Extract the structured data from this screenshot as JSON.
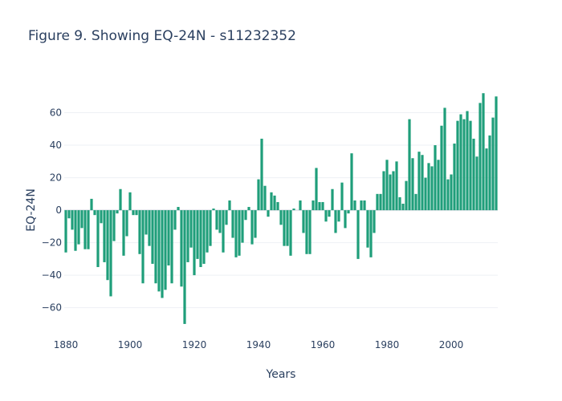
{
  "chart_data": {
    "type": "bar",
    "title": "Figure 9. Showing EQ-24N - s11232352",
    "xlabel": "Years",
    "ylabel": "EQ-24N",
    "xlim": [
      1879.5,
      2014.5
    ],
    "ylim": [
      -73,
      80
    ],
    "x_ticks": [
      1880,
      1900,
      1920,
      1940,
      1960,
      1980,
      2000
    ],
    "y_ticks": [
      -60,
      -40,
      -20,
      0,
      20,
      40,
      60
    ],
    "bar_color": "#1f9e7a",
    "grid": true,
    "x": [
      1880,
      1881,
      1882,
      1883,
      1884,
      1885,
      1886,
      1887,
      1888,
      1889,
      1890,
      1891,
      1892,
      1893,
      1894,
      1895,
      1896,
      1897,
      1898,
      1899,
      1900,
      1901,
      1902,
      1903,
      1904,
      1905,
      1906,
      1907,
      1908,
      1909,
      1910,
      1911,
      1912,
      1913,
      1914,
      1915,
      1916,
      1917,
      1918,
      1919,
      1920,
      1921,
      1922,
      1923,
      1924,
      1925,
      1926,
      1927,
      1928,
      1929,
      1930,
      1931,
      1932,
      1933,
      1934,
      1935,
      1936,
      1937,
      1938,
      1939,
      1940,
      1941,
      1942,
      1943,
      1944,
      1945,
      1946,
      1947,
      1948,
      1949,
      1950,
      1951,
      1952,
      1953,
      1954,
      1955,
      1956,
      1957,
      1958,
      1959,
      1960,
      1961,
      1962,
      1963,
      1964,
      1965,
      1966,
      1967,
      1968,
      1969,
      1970,
      1971,
      1972,
      1973,
      1974,
      1975,
      1976,
      1977,
      1978,
      1979,
      1980,
      1981,
      1982,
      1983,
      1984,
      1985,
      1986,
      1987,
      1988,
      1989,
      1990,
      1991,
      1992,
      1993,
      1994,
      1995,
      1996,
      1997,
      1998,
      1999,
      2000,
      2001,
      2002,
      2003,
      2004,
      2005,
      2006,
      2007,
      2008,
      2009,
      2010,
      2011,
      2012,
      2013,
      2014
    ],
    "values": [
      -26,
      -5,
      -12,
      -25,
      -21,
      -11,
      -24,
      -24,
      7,
      -3,
      -35,
      -8,
      -32,
      -43,
      -53,
      -19,
      -2,
      13,
      -28,
      -16,
      11,
      -3,
      -3,
      -27,
      -45,
      -15,
      -22,
      -33,
      -45,
      -50,
      -54,
      -49,
      -34,
      -45,
      -12,
      2,
      -47,
      -70,
      -32,
      -23,
      -40,
      -30,
      -35,
      -33,
      -26,
      -22,
      1,
      -12,
      -14,
      -26,
      -9,
      6,
      -17,
      -29,
      -28,
      -20,
      -6,
      2,
      -21,
      -17,
      19,
      44,
      15,
      -4,
      11,
      9,
      5,
      -9,
      -22,
      -22,
      -28,
      1,
      0,
      6,
      -14,
      -27,
      -27,
      6,
      26,
      5,
      5,
      -7,
      -4,
      13,
      -14,
      -7,
      17,
      -11,
      -2,
      35,
      6,
      -30,
      6,
      6,
      -23,
      -29,
      -14,
      10,
      10,
      24,
      31,
      22,
      24,
      30,
      8,
      4,
      18,
      56,
      32,
      10,
      36,
      34,
      20,
      29,
      27,
      40,
      31,
      52,
      63,
      19,
      22,
      41,
      55,
      59,
      56,
      61,
      55,
      44,
      33,
      66,
      72,
      38,
      46,
      57,
      70
    ]
  }
}
